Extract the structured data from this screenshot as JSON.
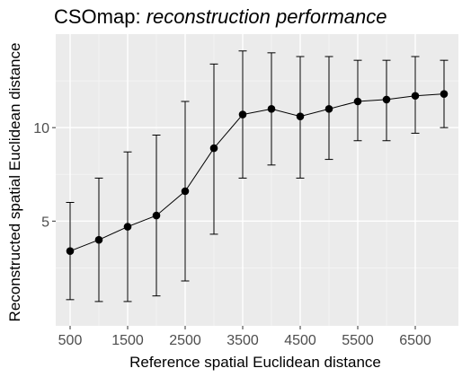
{
  "chart_data": {
    "type": "line",
    "title": {
      "prefix": "CSOmap: ",
      "emphasis": "reconstruction performance"
    },
    "xlabel": "Reference spatial Euclidean distance",
    "ylabel": "Reconstructed spatial Euclidean distance",
    "x_ticks": [
      500,
      1500,
      2500,
      3500,
      4500,
      5500,
      6500
    ],
    "x_tick_labels": [
      "500",
      "1500",
      "2500",
      "3500",
      "4500",
      "5500",
      "6500"
    ],
    "y_ticks": [
      5,
      10
    ],
    "y_tick_labels": [
      "5",
      "10"
    ],
    "xlim": [
      250,
      7250
    ],
    "ylim": [
      -0.6,
      15.0
    ],
    "grid": true,
    "series": [
      {
        "x": [
          500,
          1000,
          1500,
          2000,
          2500,
          3000,
          3500,
          4000,
          4500,
          5000,
          5500,
          6000,
          6500,
          7000
        ],
        "y": [
          3.4,
          4.0,
          4.7,
          5.3,
          6.6,
          8.9,
          10.7,
          11.0,
          10.6,
          11.0,
          11.4,
          11.5,
          11.7,
          11.8
        ],
        "y_lower": [
          0.8,
          0.7,
          0.7,
          1.0,
          1.8,
          4.3,
          7.3,
          8.0,
          7.3,
          8.3,
          9.3,
          9.3,
          9.7,
          10.0
        ],
        "y_upper": [
          6.0,
          7.3,
          8.7,
          9.6,
          11.4,
          13.4,
          14.1,
          14.0,
          13.8,
          13.8,
          13.6,
          13.6,
          13.8,
          13.6
        ]
      }
    ],
    "colors": {
      "panel": "#ebebeb",
      "grid_major": "#ffffff",
      "grid_minor": "#f5f5f5",
      "line": "#000000",
      "point": "#000000",
      "tick_text": "#4d4d4d",
      "tick_mark": "#333333"
    }
  }
}
